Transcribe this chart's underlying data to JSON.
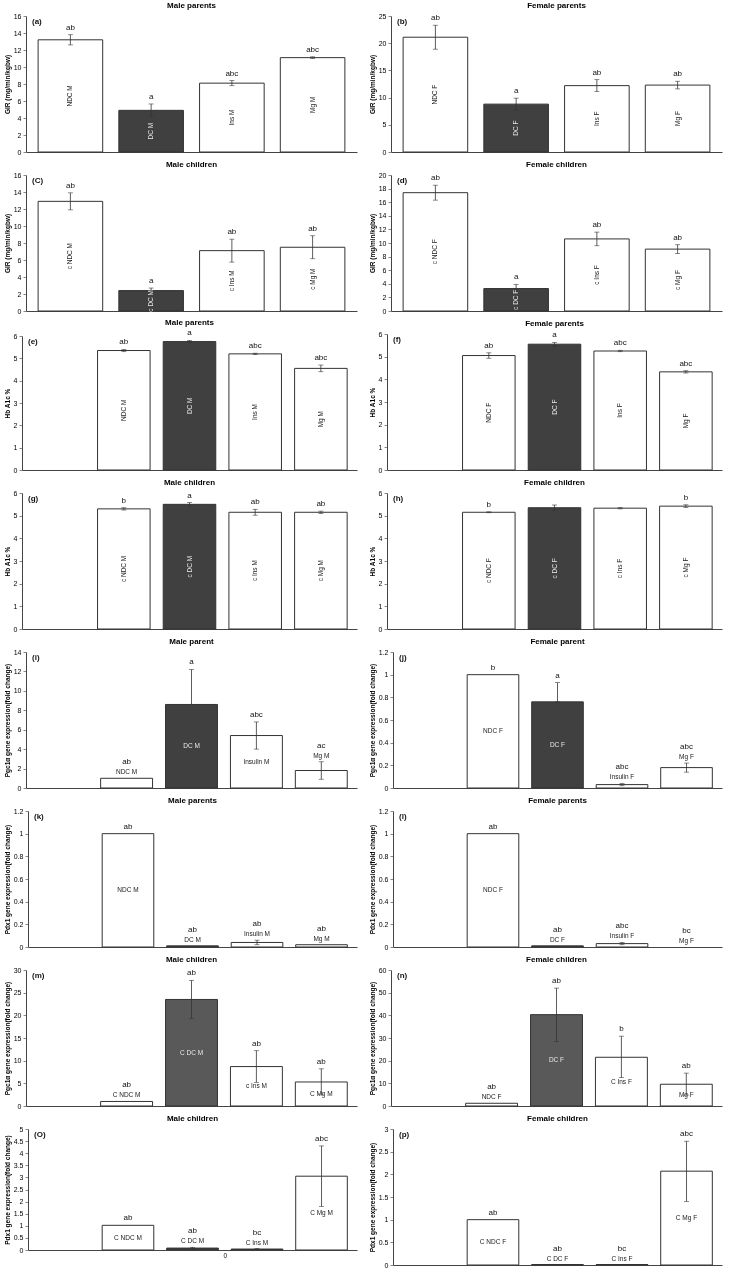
{
  "chart_data": [
    {
      "type": "bar",
      "title": "Male parents",
      "ylabel": "GIR (mg/min/kgbw)",
      "categories": [
        "NDC M",
        "DC M",
        "Ins M",
        "Mg M"
      ],
      "values": [
        13.2,
        4.9,
        8.1,
        11.1
      ],
      "errors": [
        0.6,
        0.75,
        0.3,
        0.1
      ],
      "colors": [
        "#ffffff",
        "#404040",
        "#ffffff",
        "#ffffff"
      ],
      "ylim": [
        0,
        16
      ],
      "yticks": [
        0,
        2,
        4,
        6,
        8,
        10,
        12,
        14,
        16
      ],
      "value_labels": [
        "ab",
        "a",
        "abc",
        "abc"
      ],
      "annotations": [
        "(a)"
      ]
    },
    {
      "type": "bar",
      "title": "Female parents",
      "ylabel": "GIR (mg/min/kgbw)",
      "categories": [
        "NDC F",
        "DC F",
        "Ins F",
        "Mg F"
      ],
      "values": [
        21.1,
        8.8,
        12.2,
        12.3
      ],
      "errors": [
        2.2,
        1.1,
        1.1,
        0.7
      ],
      "colors": [
        "#ffffff",
        "#404040",
        "#ffffff",
        "#ffffff"
      ],
      "ylim": [
        0,
        25
      ],
      "yticks": [
        0,
        5,
        10,
        15,
        20,
        25
      ],
      "value_labels": [
        "ab",
        "a",
        "ab",
        "ab"
      ],
      "annotations": [
        "(b)"
      ]
    },
    {
      "type": "bar",
      "title": "Male children",
      "ylabel": "GIR (mg/min/kgbw)",
      "categories": [
        "c NDC M",
        "c DC M",
        "c Ins M",
        "c Mg M"
      ],
      "values": [
        12.9,
        2.4,
        7.1,
        7.5
      ],
      "errors": [
        1.0,
        0.3,
        1.35,
        1.35
      ],
      "colors": [
        "#ffffff",
        "#404040",
        "#ffffff",
        "#ffffff"
      ],
      "ylim": [
        0,
        16
      ],
      "yticks": [
        0,
        2,
        4,
        6,
        8,
        10,
        12,
        14,
        16
      ],
      "value_labels": [
        "ab",
        "a",
        "ab",
        "ab"
      ],
      "annotations": [
        "(C)"
      ]
    },
    {
      "type": "bar",
      "title": "Female children",
      "ylabel": "GIR (mg/min/kgbw)",
      "categories": [
        "c NDC F",
        "c DC F",
        "c Ins F",
        "c Mg F"
      ],
      "values": [
        17.4,
        3.3,
        10.6,
        9.1
      ],
      "errors": [
        1.1,
        0.6,
        1.0,
        0.65
      ],
      "colors": [
        "#ffffff",
        "#404040",
        "#ffffff",
        "#ffffff"
      ],
      "ylim": [
        0,
        20
      ],
      "yticks": [
        0,
        2,
        4,
        6,
        8,
        10,
        12,
        14,
        16,
        18,
        20
      ],
      "value_labels": [
        "ab",
        "a",
        "ab",
        "ab"
      ],
      "annotations": [
        "(d)"
      ]
    },
    {
      "type": "bar",
      "title": "Male parents",
      "ylabel": "Hb A1c %",
      "categories": [
        null,
        "NDC M",
        "DC M",
        "Ins M",
        "Mg M"
      ],
      "values": [
        null,
        5.35,
        5.75,
        5.2,
        4.55
      ],
      "errors": [
        null,
        0.05,
        0.05,
        0.03,
        0.15
      ],
      "colors": [
        null,
        "#ffffff",
        "#404040",
        "#ffffff",
        "#ffffff"
      ],
      "ylim": [
        0,
        6
      ],
      "yticks": [
        0,
        1,
        2,
        3,
        4,
        5,
        6
      ],
      "value_labels": [
        null,
        "ab",
        "a",
        "abc",
        "abc"
      ],
      "annotations": [
        "(e)"
      ]
    },
    {
      "type": "bar",
      "title": "Female parents",
      "ylabel": "Hb A1c %",
      "categories": [
        null,
        "NDC F",
        "DC F",
        "Ins F",
        "Mg F"
      ],
      "values": [
        null,
        5.05,
        5.55,
        5.25,
        4.33
      ],
      "errors": [
        null,
        0.12,
        0.08,
        0.03,
        0.05
      ],
      "colors": [
        null,
        "#ffffff",
        "#404040",
        "#ffffff",
        "#ffffff"
      ],
      "ylim": [
        0,
        6
      ],
      "yticks": [
        0,
        1,
        2,
        3,
        4,
        5,
        6
      ],
      "value_labels": [
        null,
        "ab",
        "a",
        "abc",
        "abc"
      ],
      "annotations": [
        "(f)"
      ]
    },
    {
      "type": "bar",
      "title": "Male children",
      "ylabel": "Hb A1c %",
      "categories": [
        null,
        "c NDC M",
        "c DC M",
        "c Ins M",
        "c Mg M"
      ],
      "values": [
        null,
        5.3,
        5.5,
        5.15,
        5.15
      ],
      "errors": [
        null,
        0.05,
        0.08,
        0.13,
        0.05
      ],
      "colors": [
        null,
        "#ffffff",
        "#404040",
        "#ffffff",
        "#ffffff"
      ],
      "ylim": [
        0,
        6
      ],
      "yticks": [
        0,
        1,
        2,
        3,
        4,
        5,
        6
      ],
      "value_labels": [
        null,
        "b",
        "a",
        "ab",
        "ab"
      ],
      "annotations": [
        "(g)"
      ]
    },
    {
      "type": "bar",
      "title": "Female children",
      "ylabel": "Hb A1c %",
      "categories": [
        null,
        "c NDC F",
        "c DC F",
        "c Ins F",
        "c Mg F"
      ],
      "values": [
        null,
        5.15,
        5.35,
        5.33,
        5.42
      ],
      "errors": [
        null,
        0.02,
        0.12,
        0.03,
        0.06
      ],
      "colors": [
        null,
        "#ffffff",
        "#404040",
        "#ffffff",
        "#ffffff"
      ],
      "ylim": [
        0,
        6
      ],
      "yticks": [
        0,
        1,
        2,
        3,
        4,
        5,
        6
      ],
      "value_labels": [
        null,
        "b",
        null,
        null,
        "b"
      ],
      "annotations": [
        "(h)"
      ]
    },
    {
      "type": "bar",
      "title": "Male parent",
      "ylabel": "Pgc1α gene expression(fold change)",
      "categories": [
        null,
        "NDC M",
        "DC M",
        "Insulin M",
        "Mg M"
      ],
      "values": [
        null,
        1.0,
        8.6,
        5.4,
        1.8
      ],
      "errors": [
        null,
        null,
        [
          8.6,
          12.2
        ],
        [
          4.0,
          6.8
        ],
        [
          0.9,
          2.7
        ]
      ],
      "colors": [
        null,
        "#ffffff",
        "#404040",
        "#ffffff",
        "#ffffff"
      ],
      "ylim": [
        0,
        14
      ],
      "yticks": [
        0,
        2,
        4,
        6,
        8,
        10,
        12,
        14
      ],
      "value_labels": [
        null,
        "ab",
        null,
        "abc",
        "ac"
      ],
      "annotations": [
        "(i)",
        {
          "text": "a",
          "x": "DC M",
          "y": 12.2
        }
      ]
    },
    {
      "type": "bar",
      "title": "Female parent",
      "ylabel": "Pgc1α gene expression(fold change)",
      "categories": [
        null,
        "NDC F",
        "DC F",
        "Insulin F",
        "Mg F"
      ],
      "values": [
        null,
        1.0,
        0.76,
        0.03,
        0.18
      ],
      "errors": [
        null,
        null,
        [
          0.76,
          0.93
        ],
        0.01,
        [
          0.14,
          0.22
        ]
      ],
      "colors": [
        null,
        "#ffffff",
        "#404040",
        "#ffffff",
        "#ffffff"
      ],
      "ylim": [
        0,
        1.2
      ],
      "yticks": [
        0,
        0.2,
        0.4,
        0.6,
        0.8,
        1,
        1.2
      ],
      "value_labels": [
        null,
        "b",
        "a",
        "abc",
        "abc"
      ],
      "annotations": [
        "(j)"
      ]
    },
    {
      "type": "bar",
      "title": "Male parents",
      "ylabel": "Pdx1 gene expression(fold change)",
      "categories": [
        null,
        "NDC M",
        "DC M",
        "Insulin M",
        "Mg M"
      ],
      "values": [
        null,
        1.0,
        0.01,
        0.04,
        0.02
      ],
      "errors": [
        null,
        null,
        null,
        0.02,
        null
      ],
      "colors": [
        null,
        "#ffffff",
        "#404040",
        "#ffffff",
        "#ffffff"
      ],
      "ylim": [
        0,
        1.2
      ],
      "yticks": [
        0,
        0.2,
        0.4,
        0.6,
        0.8,
        1,
        1.2
      ],
      "value_labels": [
        null,
        "ab",
        "ab",
        "ab",
        "ab"
      ],
      "annotations": [
        "(k)"
      ]
    },
    {
      "type": "bar",
      "title": "Female parents",
      "ylabel": "Pdx1 gene expression(fold change)",
      "categories": [
        null,
        "NDC F",
        "DC F",
        "Insulin F",
        "Mg F"
      ],
      "values": [
        null,
        1.0,
        0.01,
        0.03,
        null
      ],
      "errors": [
        null,
        null,
        null,
        0.01,
        null
      ],
      "colors": [
        null,
        "#ffffff",
        "#404040",
        "#ffffff",
        null
      ],
      "ylim": [
        0,
        1.2
      ],
      "yticks": [
        0,
        0.2,
        0.4,
        0.6,
        0.8,
        1,
        1.2
      ],
      "value_labels": [
        null,
        "ab",
        "ab",
        "abc",
        "bc"
      ],
      "annotations": [
        "(l)"
      ]
    },
    {
      "type": "bar",
      "title": "Male children",
      "ylabel": "Pgc1α gene expression(fold change)",
      "categories": [
        null,
        "C NDC M",
        "C DC M",
        "c Ins M",
        "C Mg M"
      ],
      "values": [
        null,
        1.0,
        23.5,
        8.7,
        5.3
      ],
      "errors": [
        null,
        null,
        [
          19.3,
          27.7
        ],
        [
          5.2,
          12.2
        ],
        [
          2.6,
          8.2
        ]
      ],
      "colors": [
        null,
        "#ffffff",
        "#595959",
        "#ffffff",
        "#ffffff"
      ],
      "ylim": [
        0,
        30
      ],
      "yticks": [
        0,
        5,
        10,
        15,
        20,
        25,
        30
      ],
      "value_labels": [
        null,
        "ab",
        "ab",
        "ab",
        "ab"
      ],
      "annotations": [
        "(m)"
      ]
    },
    {
      "type": "bar",
      "title": "Female children",
      "ylabel": "Pgc1α gene expression(fold change)",
      "categories": [
        null,
        "NDC F",
        "DC F",
        "C Ins F",
        "Mg F"
      ],
      "values": [
        null,
        1.2,
        40.3,
        21.5,
        9.6
      ],
      "errors": [
        null,
        null,
        [
          28.5,
          52
        ],
        [
          12.6,
          30.8
        ],
        [
          4.8,
          14.5
        ]
      ],
      "colors": [
        null,
        "#ffffff",
        "#595959",
        "#ffffff",
        "#ffffff"
      ],
      "ylim": [
        0,
        60
      ],
      "yticks": [
        0,
        10,
        20,
        30,
        40,
        50,
        60
      ],
      "value_labels": [
        null,
        "ab",
        null,
        "b",
        "ab"
      ],
      "annotations": [
        "(n)",
        {
          "text": "ab",
          "x": "DC F",
          "y": 52
        }
      ]
    },
    {
      "type": "bar",
      "title": "Male children",
      "ylabel": "Pdx1 gene expression(fold change)",
      "categories": [
        null,
        "C NDC M",
        "C DC M",
        "C Ins M",
        "C Mg M"
      ],
      "values": [
        null,
        1.02,
        0.08,
        0.04,
        3.05
      ],
      "errors": [
        null,
        null,
        0.03,
        0.02,
        [
          1.8,
          4.3
        ]
      ],
      "colors": [
        null,
        "#ffffff",
        "#404040",
        "#404040",
        "#ffffff"
      ],
      "ylim": [
        0,
        5
      ],
      "yticks": [
        0,
        0.5,
        1,
        1.5,
        2,
        2.5,
        3,
        3.5,
        4,
        4.5,
        5
      ],
      "value_labels": [
        null,
        "ab",
        "ab",
        "bc",
        null
      ],
      "annotations": [
        "(O)",
        "0",
        {
          "text": "abc",
          "x": "C Mg M",
          "y": 4.3
        }
      ]
    },
    {
      "type": "bar",
      "title": "Female children",
      "ylabel": "Pdx1 gene expression(fold change)",
      "categories": [
        null,
        "C NDC F",
        "C DC F",
        "C Ins F",
        "C Mg F"
      ],
      "values": [
        null,
        1.0,
        0.01,
        0.01,
        2.07
      ],
      "errors": [
        null,
        null,
        null,
        null,
        [
          1.4,
          2.73
        ]
      ],
      "colors": [
        null,
        "#ffffff",
        "#404040",
        "#404040",
        "#ffffff"
      ],
      "ylim": [
        0,
        3
      ],
      "yticks": [
        0,
        0.5,
        1,
        1.5,
        2,
        2.5,
        3
      ],
      "value_labels": [
        null,
        "ab",
        "ab",
        "bc",
        null
      ],
      "annotations": [
        "(p)",
        {
          "text": "abc",
          "x": "C Mg F",
          "y": 2.73
        }
      ]
    }
  ]
}
